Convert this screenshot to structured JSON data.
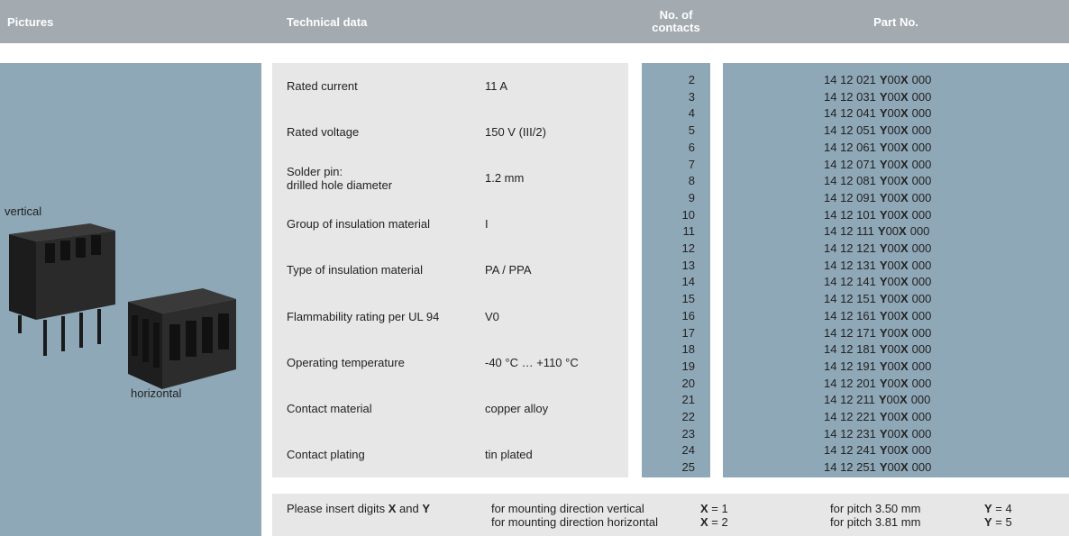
{
  "header": {
    "pictures": "Pictures",
    "technical_data": "Technical data",
    "contacts": "No. of contacts",
    "part_no": "Part No."
  },
  "pictures": {
    "vertical": "vertical",
    "horizontal": "horizontal"
  },
  "technical_data": [
    {
      "label": [
        "Rated current"
      ],
      "value": "11 A"
    },
    {
      "label": [
        "Rated voltage"
      ],
      "value": "150 V (III/2)"
    },
    {
      "label": [
        "Solder pin:",
        "drilled hole diameter"
      ],
      "value": "1.2 mm"
    },
    {
      "label": [
        "Group of insulation material"
      ],
      "value": "I"
    },
    {
      "label": [
        "Type of insulation material"
      ],
      "value": "PA / PPA"
    },
    {
      "label": [
        "Flammability rating per UL 94"
      ],
      "value": "V0"
    },
    {
      "label": [
        "Operating temperature"
      ],
      "value": "-40 °C … +110 °C"
    },
    {
      "label": [
        "Contact material"
      ],
      "value": "copper alloy"
    },
    {
      "label": [
        "Contact plating"
      ],
      "value": "tin plated"
    }
  ],
  "contacts": [
    2,
    3,
    4,
    5,
    6,
    7,
    8,
    9,
    10,
    11,
    12,
    13,
    14,
    15,
    16,
    17,
    18,
    19,
    20,
    21,
    22,
    23,
    24,
    25
  ],
  "part_numbers": [
    {
      "number": "14 12 021",
      "y": "Y",
      "zeros": "00",
      "x": "X",
      "end": "000"
    },
    {
      "number": "14 12 031",
      "y": "Y",
      "zeros": "00",
      "x": "X",
      "end": "000"
    },
    {
      "number": "14 12 041",
      "y": "Y",
      "zeros": "00",
      "x": "X",
      "end": "000"
    },
    {
      "number": "14 12 051",
      "y": "Y",
      "zeros": "00",
      "x": "X",
      "end": "000"
    },
    {
      "number": "14 12 061",
      "y": "Y",
      "zeros": "00",
      "x": "X",
      "end": "000"
    },
    {
      "number": "14 12 071",
      "y": "Y",
      "zeros": "00",
      "x": "X",
      "end": "000"
    },
    {
      "number": "14 12 081",
      "y": "Y",
      "zeros": "00",
      "x": "X",
      "end": "000"
    },
    {
      "number": "14 12 091",
      "y": "Y",
      "zeros": "00",
      "x": "X",
      "end": "000"
    },
    {
      "number": "14 12 101",
      "y": "Y",
      "zeros": "00",
      "x": "X",
      "end": "000"
    },
    {
      "number": "14 12 111",
      "y": "Y",
      "zeros": "00",
      "x": "X",
      "end": "000"
    },
    {
      "number": "14 12 121",
      "y": "Y",
      "zeros": "00",
      "x": "X",
      "end": "000"
    },
    {
      "number": "14 12 131",
      "y": "Y",
      "zeros": "00",
      "x": "X",
      "end": "000"
    },
    {
      "number": "14 12 141",
      "y": "Y",
      "zeros": "00",
      "x": "X",
      "end": "000"
    },
    {
      "number": "14 12 151",
      "y": "Y",
      "zeros": "00",
      "x": "X",
      "end": "000"
    },
    {
      "number": "14 12 161",
      "y": "Y",
      "zeros": "00",
      "x": "X",
      "end": "000"
    },
    {
      "number": "14 12 171",
      "y": "Y",
      "zeros": "00",
      "x": "X",
      "end": "000"
    },
    {
      "number": "14 12 181",
      "y": "Y",
      "zeros": "00",
      "x": "X",
      "end": "000"
    },
    {
      "number": "14 12 191",
      "y": "Y",
      "zeros": "00",
      "x": "X",
      "end": "000"
    },
    {
      "number": "14 12 201",
      "y": "Y",
      "zeros": "00",
      "x": "X",
      "end": "000"
    },
    {
      "number": "14 12 211",
      "y": "Y",
      "zeros": "00",
      "x": "X",
      "end": "000"
    },
    {
      "number": "14 12 221",
      "y": "Y",
      "zeros": "00",
      "x": "X",
      "end": "000"
    },
    {
      "number": "14 12 231",
      "y": "Y",
      "zeros": "00",
      "x": "X",
      "end": "000"
    },
    {
      "number": "14 12 241",
      "y": "Y",
      "zeros": "00",
      "x": "X",
      "end": "000"
    },
    {
      "number": "14 12 251",
      "y": "Y",
      "zeros": "00",
      "x": "X",
      "end": "000"
    }
  ],
  "footer": {
    "instruction": {
      "text": "Please insert digits",
      "x": "X",
      "and": "and",
      "y": "Y"
    },
    "directions": [
      "for mounting direction vertical",
      "for mounting direction horizontal"
    ],
    "x_values": [
      {
        "symbol": "X",
        "rest": "= 1"
      },
      {
        "symbol": "X",
        "rest": "= 2"
      }
    ],
    "pitches": [
      "for pitch 3.50 mm",
      "for pitch 3.81 mm"
    ],
    "y_values": [
      {
        "symbol": "Y",
        "rest": "= 4"
      },
      {
        "symbol": "Y",
        "rest": "= 5"
      }
    ]
  }
}
